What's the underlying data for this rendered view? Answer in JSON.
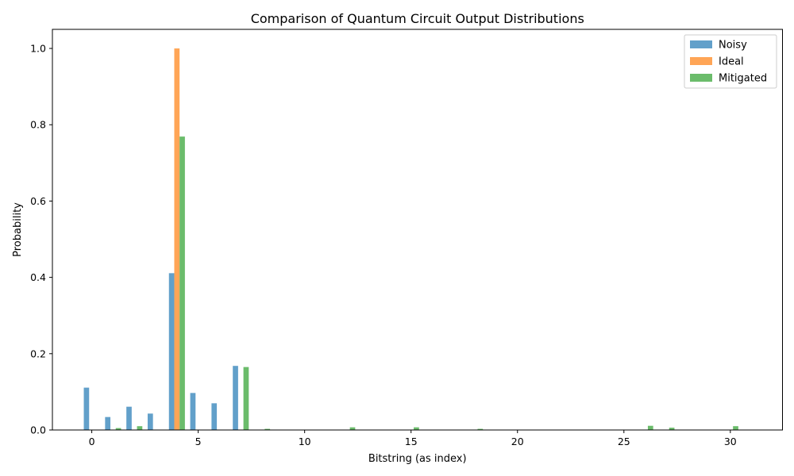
{
  "chart_data": {
    "type": "bar",
    "title": "Comparison of Quantum Circuit Output Distributions",
    "xlabel": "Bitstring (as index)",
    "ylabel": "Probability",
    "xlim": [
      -1.85,
      32.45
    ],
    "ylim": [
      0,
      1.05
    ],
    "xticks": [
      0,
      5,
      10,
      15,
      20,
      25,
      30
    ],
    "yticks": [
      0.0,
      0.2,
      0.4,
      0.6,
      0.8,
      1.0
    ],
    "xtick_labels": [
      "0",
      "5",
      "10",
      "15",
      "20",
      "25",
      "30"
    ],
    "ytick_labels": [
      "0.0",
      "0.2",
      "0.4",
      "0.6",
      "0.8",
      "1.0"
    ],
    "grid": false,
    "legend_position": "top-right",
    "x": [
      0,
      1,
      2,
      3,
      4,
      5,
      6,
      7,
      8,
      9,
      10,
      11,
      12,
      13,
      14,
      15,
      16,
      17,
      18,
      19,
      20,
      21,
      22,
      23,
      24,
      25,
      26,
      27,
      28,
      29,
      30,
      31
    ],
    "series": [
      {
        "name": "Noisy",
        "color": "#1f77b4",
        "values": [
          0.111,
          0.034,
          0.061,
          0.043,
          0.411,
          0.097,
          0.07,
          0.168,
          0,
          0,
          0,
          0,
          0,
          0,
          0,
          0,
          0,
          0,
          0,
          0,
          0,
          0,
          0,
          0,
          0,
          0,
          0,
          0,
          0,
          0,
          0,
          0
        ]
      },
      {
        "name": "Ideal",
        "color": "#ff7f0e",
        "values": [
          0,
          0,
          0,
          0,
          1.0,
          0,
          0,
          0,
          0,
          0,
          0,
          0,
          0,
          0,
          0,
          0,
          0,
          0,
          0,
          0,
          0,
          0,
          0,
          0,
          0,
          0,
          0,
          0,
          0,
          0,
          0,
          0
        ]
      },
      {
        "name": "Mitigated",
        "color": "#2ca02c",
        "values": [
          0,
          0.005,
          0.01,
          0,
          0.769,
          0,
          0,
          0.165,
          0.003,
          0,
          0,
          0,
          0.007,
          0,
          0,
          0.007,
          0,
          0,
          0.003,
          0,
          0.001,
          0,
          0,
          0,
          0,
          0,
          0.011,
          0.006,
          0,
          0,
          0.01,
          0
        ]
      }
    ]
  }
}
